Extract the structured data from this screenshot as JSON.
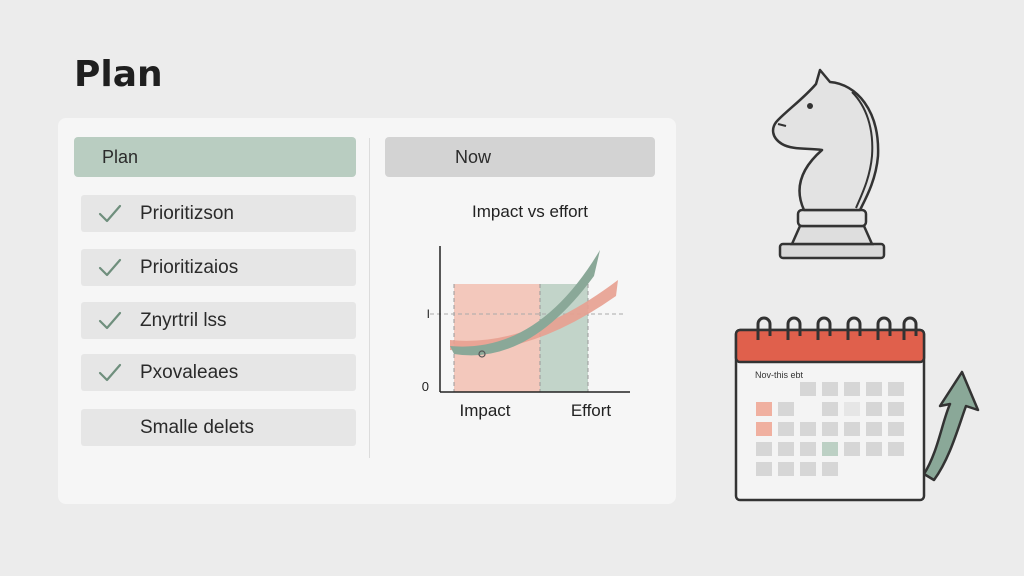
{
  "page": {
    "title": "Plan"
  },
  "plan_column": {
    "header": "Plan",
    "items": [
      {
        "label": "Prioritizson",
        "checked": true
      },
      {
        "label": "Prioritizaios",
        "checked": true
      },
      {
        "label": "Znyrtril lss",
        "checked": true
      },
      {
        "label": "Pxovaleaes",
        "checked": true
      },
      {
        "label": "Smalle delets",
        "checked": false
      }
    ]
  },
  "now_column": {
    "header": "Now"
  },
  "chart_data": {
    "type": "area",
    "title": "Impact vs effort",
    "categories": [
      "Impact",
      "Effort"
    ],
    "y_tick_labels": [
      "0",
      "I"
    ],
    "colors": {
      "impact": "#f0b0a0",
      "effort": "#b9cdc1",
      "curve_green": "#8aa898",
      "curve_red": "#e89a86"
    }
  },
  "calendar": {
    "heading": "Nov-this ebt"
  },
  "icons": {
    "knight": "chess-knight-icon",
    "calendar": "calendar-icon",
    "arrow": "trend-up-arrow-icon",
    "check": "check-icon"
  },
  "colors": {
    "accent_green": "#b9cdc1",
    "accent_red": "#e0604c",
    "header_gray": "#d3d3d3"
  }
}
